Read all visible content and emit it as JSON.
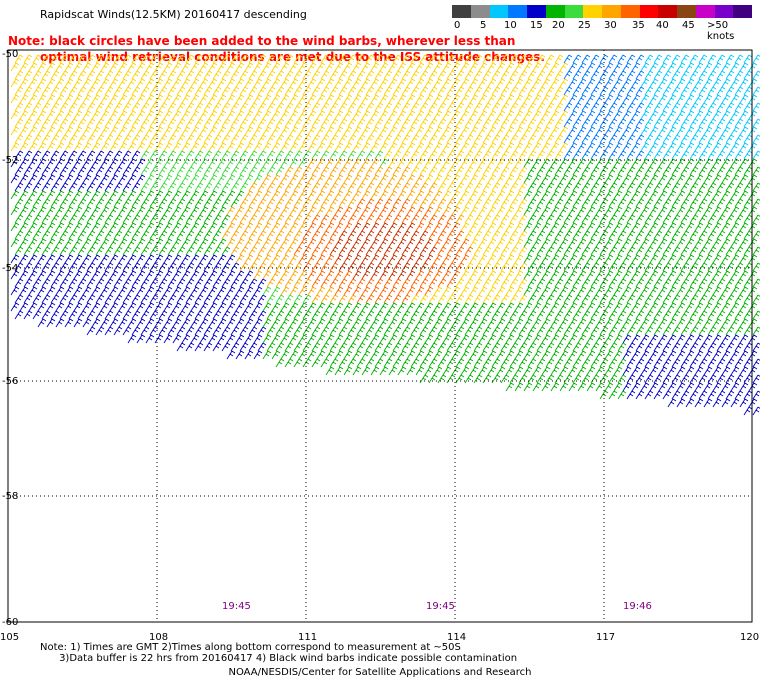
{
  "title": "Rapidscat Winds(12.5KM) 20160417 descending",
  "note": {
    "line1": "Note: black circles have been added to the wind barbs, wherever less than",
    "line2": "optimal wind retrieval conditions are met due to the ISS attitude changes."
  },
  "legend": {
    "colors": [
      "#404040",
      "#8c8c8c",
      "#00c8ff",
      "#0078ff",
      "#0000c8",
      "#00b400",
      "#3cdc3c",
      "#ffd200",
      "#ffa500",
      "#ff6400",
      "#ff0000",
      "#c80000",
      "#8b4513",
      "#c800c8",
      "#7800c8",
      "#400080"
    ],
    "labels": [
      "0",
      "5",
      "10",
      "15",
      "20",
      "25",
      "30",
      "35",
      "40",
      "45",
      ">50 knots"
    ]
  },
  "map": {
    "lat_labels": [
      "-50",
      "-52",
      "-54",
      "-56",
      "-58",
      "-60"
    ],
    "lon_labels": [
      "105",
      "108",
      "111",
      "114",
      "117",
      "120"
    ],
    "time_labels": [
      "19:45",
      "19:45",
      "19:46"
    ]
  },
  "footnote": {
    "line1": "Note: 1) Times are GMT 2)Times along bottom correspond to measurement at ~50S",
    "line2": "      3)Data buffer is 22 hrs from 20160417 4) Black wind barbs indicate possible contamination"
  },
  "credit": "NOAA/NESDIS/Center for Satellite Applications and Research"
}
